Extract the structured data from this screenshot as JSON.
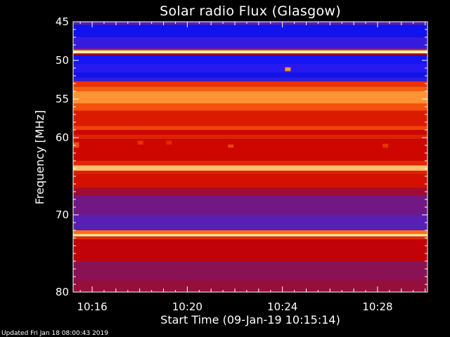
{
  "chart_data": {
    "type": "heatmap",
    "title": "Solar radio Flux (Glasgow)",
    "ylabel": "Frequency [MHz]",
    "xlabel": "Start Time (09-Jan-19 10:15:14)",
    "ylim": [
      45,
      80
    ],
    "y_inverted": true,
    "yticks": [
      {
        "value": 45,
        "label": "45"
      },
      {
        "value": 50,
        "label": "50"
      },
      {
        "value": 55,
        "label": "55"
      },
      {
        "value": 60,
        "label": "60"
      },
      {
        "value": 70,
        "label": "70"
      },
      {
        "value": 80,
        "label": "80"
      }
    ],
    "xlim_minutes": [
      15.2,
      30.1
    ],
    "xticks": [
      {
        "value": 16,
        "label": "10:16"
      },
      {
        "value": 20,
        "label": "10:20"
      },
      {
        "value": 24,
        "label": "10:24"
      },
      {
        "value": 28,
        "label": "10:28"
      }
    ],
    "intensity_bands": [
      {
        "from": 45.0,
        "to": 45.4,
        "level": 0.3
      },
      {
        "from": 45.4,
        "to": 47.0,
        "level": 0.1
      },
      {
        "from": 47.0,
        "to": 48.5,
        "level": 0.22
      },
      {
        "from": 48.5,
        "to": 48.7,
        "level": 0.7
      },
      {
        "from": 48.7,
        "to": 49.1,
        "level": 1.0
      },
      {
        "from": 49.1,
        "to": 49.3,
        "level": 0.6
      },
      {
        "from": 49.3,
        "to": 50.4,
        "level": 0.12
      },
      {
        "from": 50.4,
        "to": 51.6,
        "level": 0.18
      },
      {
        "from": 51.6,
        "to": 52.2,
        "level": 0.1
      },
      {
        "from": 52.2,
        "to": 52.7,
        "level": 0.2
      },
      {
        "from": 52.7,
        "to": 53.4,
        "level": 0.75
      },
      {
        "from": 53.4,
        "to": 54.0,
        "level": 0.82
      },
      {
        "from": 54.0,
        "to": 55.6,
        "level": 0.9
      },
      {
        "from": 55.6,
        "to": 56.5,
        "level": 0.8
      },
      {
        "from": 56.5,
        "to": 58.5,
        "level": 0.68
      },
      {
        "from": 58.5,
        "to": 59.0,
        "level": 0.78
      },
      {
        "from": 59.0,
        "to": 59.6,
        "level": 0.62
      },
      {
        "from": 59.6,
        "to": 60.2,
        "level": 0.7
      },
      {
        "from": 60.2,
        "to": 63.0,
        "level": 0.62
      },
      {
        "from": 63.0,
        "to": 63.6,
        "level": 0.72
      },
      {
        "from": 63.6,
        "to": 64.3,
        "level": 0.95
      },
      {
        "from": 64.3,
        "to": 64.8,
        "level": 0.7
      },
      {
        "from": 64.8,
        "to": 66.5,
        "level": 0.65
      },
      {
        "from": 66.5,
        "to": 67.5,
        "level": 0.48
      },
      {
        "from": 67.5,
        "to": 70.0,
        "level": 0.36
      },
      {
        "from": 70.0,
        "to": 72.0,
        "level": 0.3
      },
      {
        "from": 72.0,
        "to": 72.5,
        "level": 0.85
      },
      {
        "from": 72.5,
        "to": 72.8,
        "level": 1.0
      },
      {
        "from": 72.8,
        "to": 73.2,
        "level": 0.72
      },
      {
        "from": 73.2,
        "to": 76.0,
        "level": 0.58
      },
      {
        "from": 76.0,
        "to": 78.5,
        "level": 0.42
      },
      {
        "from": 78.5,
        "to": 80.0,
        "level": 0.45
      }
    ],
    "bursts": [
      {
        "t": 15.3,
        "freq_from": 60.6,
        "freq_to": 61.3,
        "level": 0.8
      },
      {
        "t": 18.0,
        "freq_from": 60.4,
        "freq_to": 60.9,
        "level": 0.75
      },
      {
        "t": 19.2,
        "freq_from": 60.4,
        "freq_to": 60.9,
        "level": 0.72
      },
      {
        "t": 21.8,
        "freq_from": 60.9,
        "freq_to": 61.3,
        "level": 0.78
      },
      {
        "t": 24.2,
        "freq_from": 50.9,
        "freq_to": 51.4,
        "level": 0.9
      },
      {
        "t": 28.3,
        "freq_from": 60.8,
        "freq_to": 61.3,
        "level": 0.75
      }
    ]
  },
  "footer": "Updated Fri Jan 18 08:00:43 2019"
}
